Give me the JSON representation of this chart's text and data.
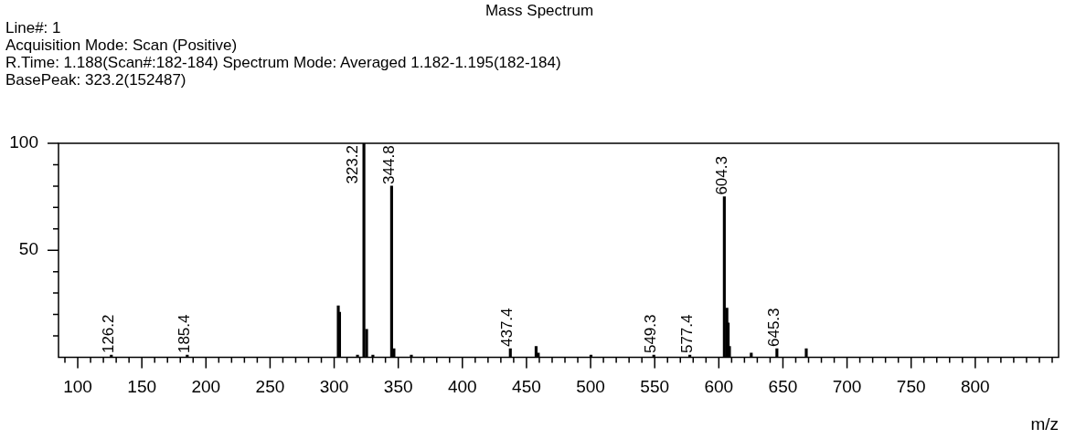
{
  "chart_data": {
    "type": "bar",
    "title": "Mass Spectrum",
    "xlabel": "m/z",
    "color": "#000000",
    "x": [
      126.2,
      185.4,
      303.2,
      304.2,
      318.2,
      323.2,
      325.3,
      330.2,
      344.8,
      346.6,
      360.2,
      437.4,
      457.5,
      459.2,
      500.3,
      549.3,
      577.4,
      604.3,
      606.3,
      607.3,
      608.3,
      625.3,
      645.3,
      668.2
    ],
    "values": [
      1,
      1,
      24,
      21,
      1,
      100,
      13,
      1,
      80,
      4,
      1,
      4,
      5,
      2,
      1,
      1,
      1,
      75,
      23,
      16,
      5,
      2,
      4,
      4
    ],
    "xlim": [
      85,
      865
    ],
    "xticks": [
      {
        "value": 90,
        "label": null
      },
      100,
      {
        "value": 110,
        "label": null
      },
      {
        "value": 120,
        "label": null
      },
      {
        "value": 130,
        "label": null
      },
      {
        "value": 140,
        "label": null
      },
      150,
      {
        "value": 160,
        "label": null
      },
      {
        "value": 170,
        "label": null
      },
      {
        "value": 180,
        "label": null
      },
      {
        "value": 190,
        "label": null
      },
      200,
      {
        "value": 210,
        "label": null
      },
      {
        "value": 220,
        "label": null
      },
      {
        "value": 230,
        "label": null
      },
      {
        "value": 240,
        "label": null
      },
      250,
      {
        "value": 260,
        "label": null
      },
      {
        "value": 270,
        "label": null
      },
      {
        "value": 280,
        "label": null
      },
      {
        "value": 290,
        "label": null
      },
      300,
      {
        "value": 310,
        "label": null
      },
      {
        "value": 320,
        "label": null
      },
      {
        "value": 330,
        "label": null
      },
      {
        "value": 340,
        "label": null
      },
      350,
      {
        "value": 360,
        "label": null
      },
      {
        "value": 370,
        "label": null
      },
      {
        "value": 380,
        "label": null
      },
      {
        "value": 390,
        "label": null
      },
      400,
      {
        "value": 410,
        "label": null
      },
      {
        "value": 420,
        "label": null
      },
      {
        "value": 430,
        "label": null
      },
      {
        "value": 440,
        "label": null
      },
      450,
      {
        "value": 460,
        "label": null
      },
      {
        "value": 470,
        "label": null
      },
      {
        "value": 480,
        "label": null
      },
      {
        "value": 490,
        "label": null
      },
      500,
      {
        "value": 510,
        "label": null
      },
      {
        "value": 520,
        "label": null
      },
      {
        "value": 530,
        "label": null
      },
      {
        "value": 540,
        "label": null
      },
      550,
      {
        "value": 560,
        "label": null
      },
      {
        "value": 570,
        "label": null
      },
      {
        "value": 580,
        "label": null
      },
      {
        "value": 590,
        "label": null
      },
      600,
      {
        "value": 610,
        "label": null
      },
      {
        "value": 620,
        "label": null
      },
      {
        "value": 630,
        "label": null
      },
      {
        "value": 640,
        "label": null
      },
      650,
      {
        "value": 660,
        "label": null
      },
      {
        "value": 670,
        "label": null
      },
      {
        "value": 680,
        "label": null
      },
      {
        "value": 690,
        "label": null
      },
      700,
      {
        "value": 710,
        "label": null
      },
      {
        "value": 720,
        "label": null
      },
      {
        "value": 730,
        "label": null
      },
      {
        "value": 740,
        "label": null
      },
      750,
      {
        "value": 760,
        "label": null
      },
      {
        "value": 770,
        "label": null
      },
      {
        "value": 780,
        "label": null
      },
      {
        "value": 790,
        "label": null
      },
      800,
      {
        "value": 810,
        "label": null
      },
      {
        "value": 820,
        "label": null
      },
      {
        "value": 830,
        "label": null
      },
      {
        "value": 840,
        "label": null
      },
      {
        "value": 850,
        "label": null
      },
      {
        "value": 860,
        "label": null
      }
    ],
    "ylim": [
      0,
      100
    ],
    "yticks": [
      {
        "value": 10,
        "label": null
      },
      {
        "value": 20,
        "label": null
      },
      {
        "value": 30,
        "label": null
      },
      {
        "value": 40,
        "label": null
      },
      50,
      {
        "value": 60,
        "label": null
      },
      {
        "value": 70,
        "label": null
      },
      {
        "value": 80,
        "label": null
      },
      {
        "value": 90,
        "label": null
      },
      100
    ],
    "annotations": [
      "Line#: 1",
      "Acquisition Mode: Scan (Positive)",
      "R.Time: 1.188(Scan#:182-184)  Spectrum Mode: Averaged 1.182-1.195(182-184)",
      "BasePeak: 323.2(152487)",
      {
        "text": "126.2",
        "x": 126.2,
        "y": 1
      },
      {
        "text": "185.4",
        "x": 185.4,
        "y": 1
      },
      {
        "text": "323.2",
        "x": 323.2,
        "y": 100
      },
      {
        "text": "344.8",
        "x": 344.8,
        "y": 80
      },
      {
        "text": "437.4",
        "x": 437.4,
        "y": 4
      },
      {
        "text": "549.3",
        "x": 549.3,
        "y": 1
      },
      {
        "text": "577.4",
        "x": 577.4,
        "y": 1
      },
      {
        "text": "604.3",
        "x": 604.3,
        "y": 75
      },
      {
        "text": "645.3",
        "x": 645.3,
        "y": 4
      }
    ]
  }
}
